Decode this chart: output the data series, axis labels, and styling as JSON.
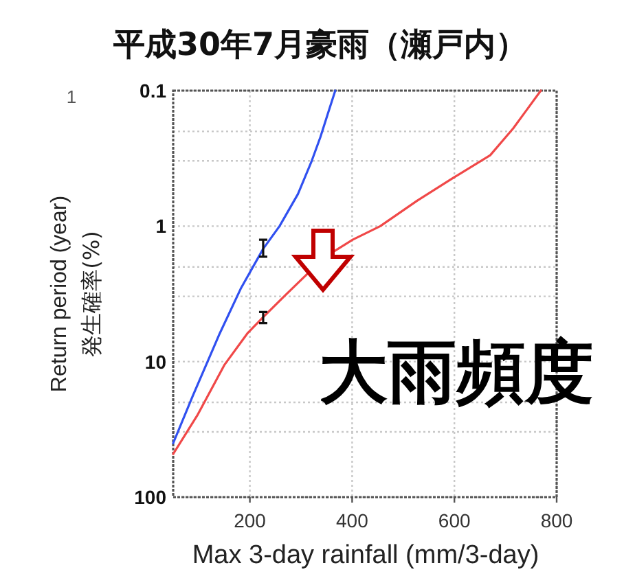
{
  "chart_data": {
    "type": "line",
    "title": "平成30年7月豪雨（瀬戸内）",
    "xlabel": "Max  3-day rainfall  (mm/3-day)",
    "ylabel": "発生確率(%)",
    "annotations": [
      "Return period (year)",
      "1",
      "大雨頻度"
    ],
    "log": true,
    "grid": true,
    "line_style": "solid",
    "marker": "none",
    "xlim": [
      50,
      800
    ],
    "xticks": [
      200,
      400,
      600,
      800
    ],
    "ylim": [
      100,
      0.1
    ],
    "yticks": [
      0.1,
      {
        "value": 0.2,
        "label": null
      },
      {
        "value": 0.33,
        "label": null
      },
      1,
      {
        "value": 2,
        "label": null
      },
      {
        "value": 3.3,
        "label": null
      },
      10,
      {
        "value": 20,
        "label": null
      },
      {
        "value": 33,
        "label": null
      },
      100
    ],
    "series": [
      {
        "color": "#3050f0",
        "x": [
          50,
          88,
          141,
          182,
          226,
          258,
          294,
          321,
          338,
          352,
          367
        ],
        "values": [
          40,
          18,
          6.2,
          2.9,
          1.47,
          1.0,
          0.58,
          0.33,
          0.22,
          0.15,
          0.1
        ],
        "errors": [
          null,
          null,
          null,
          null,
          [
            1.26,
            1.68
          ],
          null,
          null,
          null,
          null,
          null,
          null
        ]
      },
      {
        "color": "#f04848",
        "x": [
          50,
          97,
          150,
          195,
          226,
          267,
          312,
          365,
          401,
          455,
          527,
          598,
          670,
          715,
          769
        ],
        "values": [
          48,
          25,
          10.6,
          6.2,
          4.7,
          3.3,
          2.26,
          1.53,
          1.26,
          1.0,
          0.65,
          0.44,
          0.3,
          0.19,
          0.1
        ],
        "errors": [
          null,
          null,
          null,
          null,
          [
            4.3,
            5.2
          ],
          null,
          null,
          null,
          null,
          null,
          null,
          null,
          null,
          null,
          null
        ]
      }
    ]
  }
}
